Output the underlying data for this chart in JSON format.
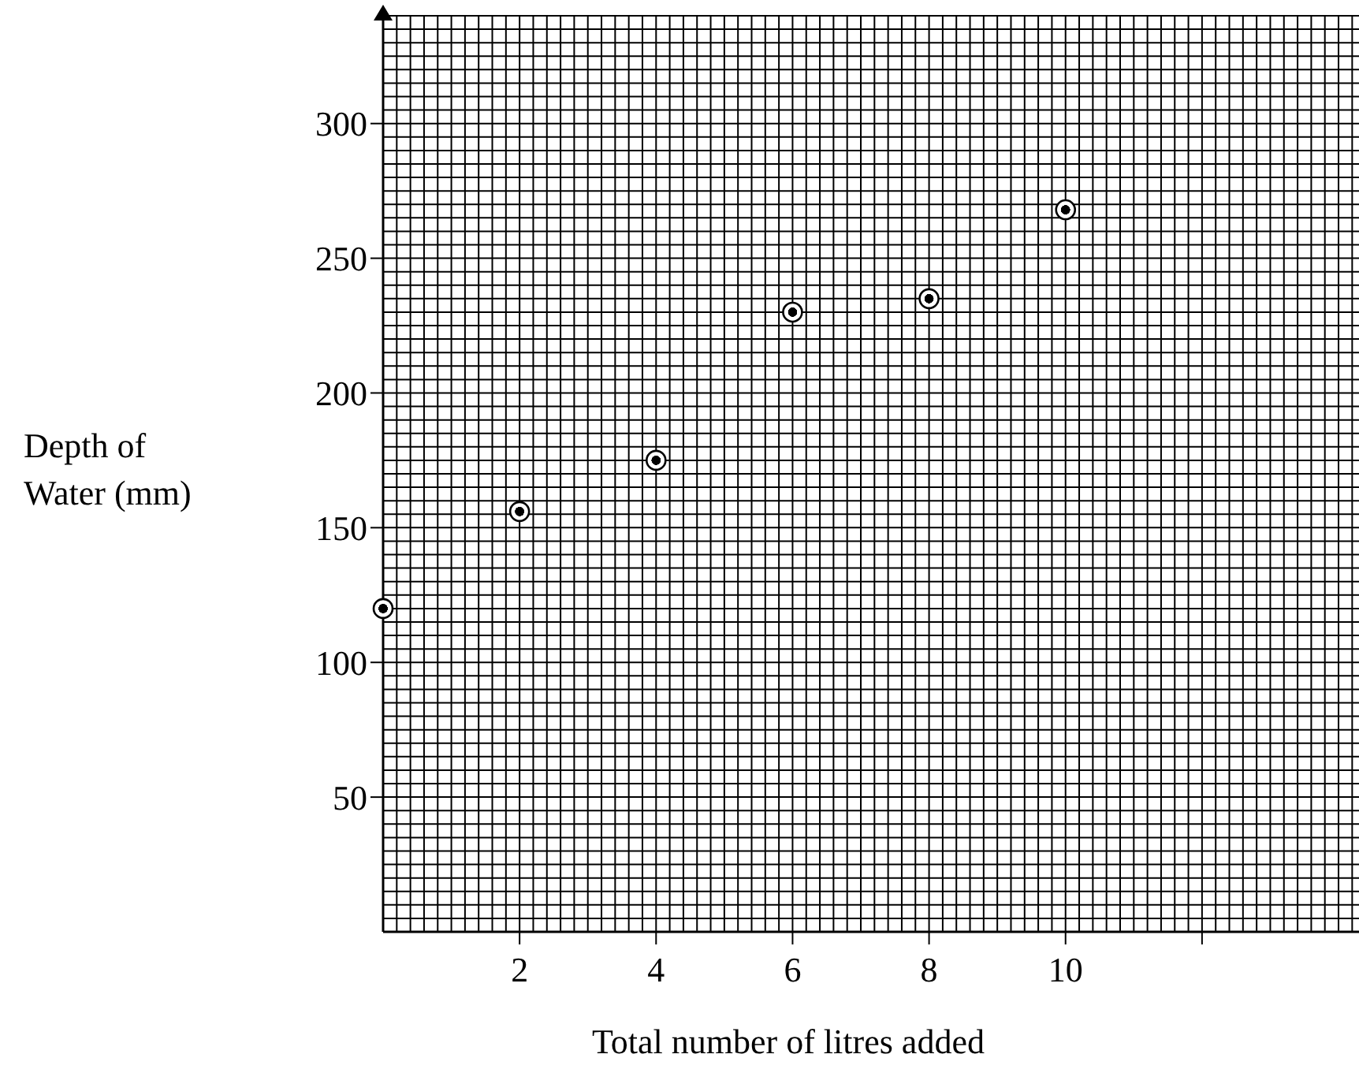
{
  "chart_data": {
    "type": "scatter",
    "xlabel": "Total number of litres added",
    "ylabel": "Depth of Water (mm)",
    "x": [
      0,
      2,
      4,
      6,
      8,
      10
    ],
    "series": [
      {
        "color": "#000000",
        "values": [
          120,
          156,
          175,
          230,
          235,
          268
        ]
      }
    ],
    "xlim": [
      0,
      14.3
    ],
    "xticks": [
      2,
      4,
      6,
      8,
      10,
      {
        "value": 12,
        "label": null
      }
    ],
    "ylim": [
      0,
      340
    ],
    "yticks": [
      50,
      100,
      150,
      200,
      250,
      300
    ],
    "grid": true,
    "marker": "circle"
  }
}
